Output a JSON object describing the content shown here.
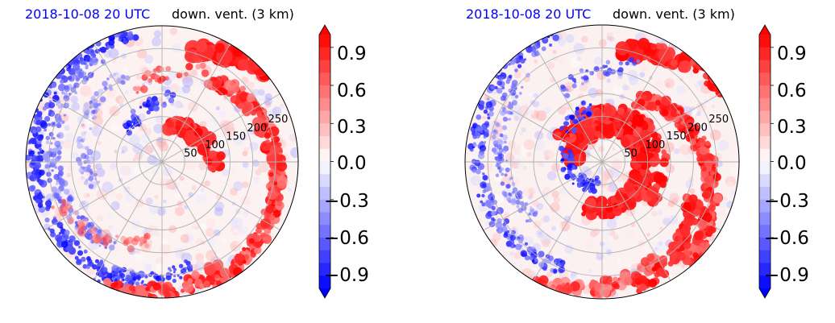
{
  "chart_data": [
    {
      "type": "heatmap",
      "projection": "polar",
      "title_left": "2018-10-08 20 UTC",
      "title_right": "down. vent. (3 km)",
      "radial_ticks": [
        "50",
        "100",
        "150",
        "200",
        "250"
      ],
      "radial_range": [
        0,
        300
      ],
      "grid": true,
      "colorbar": {
        "range": [
          -1.0,
          1.0
        ],
        "extend": "both",
        "ticks": [
          "0.9",
          "0.6",
          "0.3",
          "0.0",
          "−0.3",
          "−0.6",
          "−0.9"
        ],
        "colors": [
          "#0000ff",
          "#ffffff",
          "#ff0000"
        ]
      }
    },
    {
      "type": "heatmap",
      "projection": "polar",
      "title_left": "2018-10-08 20 UTC",
      "title_right": "down. vent. (3 km)",
      "radial_ticks": [
        "50",
        "100",
        "150",
        "200",
        "250"
      ],
      "radial_range": [
        0,
        300
      ],
      "grid": true,
      "colorbar": {
        "range": [
          -1.0,
          1.0
        ],
        "extend": "both",
        "ticks": [
          "0.9",
          "0.6",
          "0.3",
          "0.0",
          "−0.3",
          "−0.6",
          "−0.9"
        ],
        "colors": [
          "#0000ff",
          "#ffffff",
          "#ff0000"
        ]
      }
    }
  ]
}
